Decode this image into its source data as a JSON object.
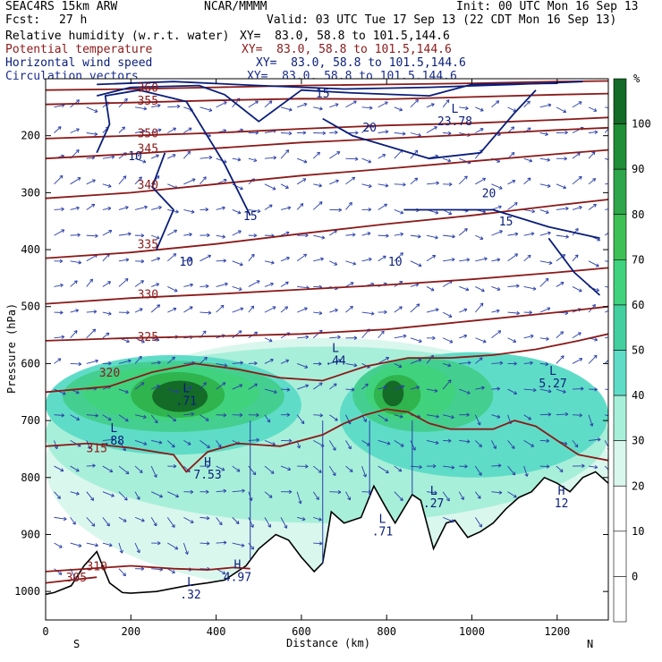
{
  "header": {
    "model": "SEAC4RS 15km ARW",
    "center": "NCAR/MMMM",
    "init": "Init: 00 UTC Mon 16 Sep 13",
    "fcst_label": "Fcst:",
    "fcst_value": "27 h",
    "valid": "Valid: 03 UTC Tue 17 Sep 13 (22 CDT Mon 16 Sep 13)"
  },
  "fields": [
    {
      "name": "Relative humidity (w.r.t. water)",
      "xy": "XY=  83.0, 58.8 to 101.5,144.6",
      "color": "#000000"
    },
    {
      "name": "Potential temperature",
      "xy": "XY=  83.0, 58.8 to 101.5,144.6",
      "color": "#8b1a1a"
    },
    {
      "name": "Horizontal wind speed",
      "xy": "XY=  83.0, 58.8 to 101.5,144.6",
      "color": "#0a1e7a"
    },
    {
      "name": "Circulation vectors",
      "xy": "XY=  83.0, 58.8 to 101.5,144.6",
      "color": "#1a2d8f"
    }
  ],
  "colors": {
    "theta": "#8b1a1a",
    "wind": "#0a1e7a",
    "vector": "#2a3fa8",
    "terrain": "#000000"
  },
  "chart_data": {
    "type": "heatmap",
    "title": "",
    "xlabel": "Distance (km)",
    "ylabel": "Pressure (hPa)",
    "xlim": [
      0,
      1320
    ],
    "ylim": [
      1050,
      100
    ],
    "x_ticks": [
      "0",
      "200",
      "400",
      "600",
      "800",
      "1000",
      "1200"
    ],
    "x_tick_values": [
      0,
      200,
      400,
      600,
      800,
      1000,
      1200
    ],
    "y_ticks": [
      "200",
      "300",
      "400",
      "500",
      "600",
      "700",
      "800",
      "900",
      "1000"
    ],
    "y_tick_values": [
      200,
      300,
      400,
      500,
      600,
      700,
      800,
      900,
      1000
    ],
    "endpoints": {
      "left": "S",
      "right": "N"
    },
    "colorbar": {
      "unit": "%",
      "labels": [
        "100",
        "90",
        "80",
        "70",
        "60",
        "50",
        "40",
        "30",
        "20",
        "10",
        "0"
      ],
      "levels": [
        100,
        90,
        80,
        70,
        60,
        50,
        40,
        30,
        20,
        10,
        0
      ],
      "colors": [
        "#ffffff",
        "#ffffff",
        "#ffffff",
        "#daf7ed",
        "#a8efd9",
        "#5fdcc7",
        "#44cfa0",
        "#40d27c",
        "#3fc054",
        "#2fa64a",
        "#1f8e36",
        "#146a27"
      ]
    },
    "terrain_km": [
      0,
      20,
      60,
      90,
      120,
      150,
      180,
      200,
      260,
      330,
      380,
      420,
      470,
      500,
      540,
      570,
      600,
      630,
      650,
      670,
      700,
      740,
      770,
      800,
      820,
      860,
      880,
      910,
      940,
      960,
      990,
      1020,
      1050,
      1080,
      1110,
      1140,
      1170,
      1200,
      1230,
      1260,
      1290,
      1320
    ],
    "terrain_hpa": [
      1005,
      1002,
      990,
      955,
      930,
      985,
      1002,
      1003,
      1000,
      990,
      985,
      980,
      955,
      925,
      900,
      910,
      940,
      965,
      950,
      860,
      880,
      870,
      815,
      855,
      880,
      830,
      840,
      925,
      880,
      875,
      905,
      895,
      880,
      855,
      835,
      825,
      800,
      810,
      825,
      800,
      790,
      810
    ],
    "rh_regions": [
      {
        "level": 30,
        "center_km": [
          340,
          640
        ],
        "hpa_span": [
          550,
          1000
        ]
      },
      {
        "level": 60,
        "center_km": [
          180,
          640
        ],
        "hpa_span": [
          580,
          720
        ]
      },
      {
        "level": 90,
        "center_km": [
          300,
          650
        ],
        "hpa_span": [
          620,
          690
        ]
      }
    ],
    "theta_contours": [
      {
        "label": "360",
        "km": [
          0,
          200,
          400,
          600,
          800,
          1000,
          1200,
          1320
        ],
        "hpa": [
          120,
          118,
          115,
          112,
          110,
          108,
          105,
          104
        ]
      },
      {
        "label": "355",
        "km": [
          0,
          200,
          400,
          600,
          800,
          1000,
          1200,
          1320
        ],
        "hpa": [
          145,
          142,
          138,
          135,
          136,
          132,
          128,
          126
        ]
      },
      {
        "label": "350",
        "km": [
          0,
          200,
          400,
          600,
          800,
          1000,
          1200,
          1320
        ],
        "hpa": [
          205,
          200,
          195,
          188,
          182,
          178,
          172,
          168
        ]
      },
      {
        "label": "345",
        "km": [
          0,
          200,
          400,
          600,
          800,
          1000,
          1200,
          1320
        ],
        "hpa": [
          240,
          232,
          222,
          212,
          205,
          198,
          190,
          186
        ]
      },
      {
        "label": "340",
        "km": [
          0,
          200,
          400,
          600,
          800,
          1000,
          1200,
          1320
        ],
        "hpa": [
          310,
          300,
          285,
          270,
          258,
          245,
          232,
          225
        ]
      },
      {
        "label": "335",
        "km": [
          0,
          200,
          400,
          600,
          800,
          1000,
          1200,
          1320
        ],
        "hpa": [
          415,
          405,
          390,
          372,
          355,
          340,
          322,
          312
        ]
      },
      {
        "label": "330",
        "km": [
          0,
          200,
          400,
          600,
          800,
          1000,
          1200,
          1320
        ],
        "hpa": [
          495,
          485,
          478,
          470,
          462,
          452,
          440,
          432
        ]
      },
      {
        "label": "325",
        "km": [
          0,
          200,
          400,
          600,
          800,
          1000,
          1200,
          1320
        ],
        "hpa": [
          560,
          555,
          552,
          548,
          540,
          525,
          510,
          500
        ]
      },
      {
        "label": "320",
        "km": [
          0,
          150,
          250,
          350,
          450,
          550,
          650,
          750,
          850,
          950,
          1050,
          1150,
          1250,
          1320
        ],
        "hpa": [
          650,
          640,
          615,
          600,
          610,
          625,
          630,
          605,
          590,
          590,
          585,
          575,
          560,
          548
        ]
      },
      {
        "label": "315",
        "km": [
          0,
          100,
          200,
          300,
          330,
          380,
          450,
          550,
          650,
          700,
          750,
          800,
          850,
          900,
          950,
          1050,
          1100,
          1150,
          1200,
          1250,
          1320
        ],
        "hpa": [
          745,
          740,
          748,
          760,
          790,
          755,
          740,
          745,
          725,
          705,
          690,
          680,
          685,
          705,
          715,
          715,
          700,
          710,
          735,
          760,
          770
        ]
      },
      {
        "label": "310",
        "km": [
          0,
          100,
          200,
          300,
          380,
          440,
          480
        ],
        "hpa": [
          965,
          960,
          955,
          960,
          962,
          958,
          960
        ]
      },
      {
        "label": "305",
        "km": [
          0,
          60,
          120
        ],
        "hpa": [
          985,
          980,
          975
        ]
      }
    ],
    "wind_labels": [
      {
        "label": "15",
        "km": 650,
        "hpa": 125
      },
      {
        "label": "20",
        "km": 760,
        "hpa": 185
      },
      {
        "label": "10",
        "km": 210,
        "hpa": 235
      },
      {
        "label": "15",
        "km": 480,
        "hpa": 340
      },
      {
        "label": "20",
        "km": 1040,
        "hpa": 300
      },
      {
        "label": "15",
        "km": 1080,
        "hpa": 350
      },
      {
        "label": "10",
        "km": 330,
        "hpa": 420
      },
      {
        "label": "10",
        "km": 820,
        "hpa": 420
      }
    ],
    "extrema": [
      {
        "type": "L",
        "value": "23.78",
        "km": 960,
        "hpa": 160
      },
      {
        "type": "L",
        "value": ".44",
        "km": 680,
        "hpa": 580
      },
      {
        "type": "L",
        "value": ".71",
        "km": 330,
        "hpa": 650
      },
      {
        "type": "L",
        "value": ".88",
        "km": 160,
        "hpa": 720
      },
      {
        "type": "H",
        "value": "7.53",
        "km": 380,
        "hpa": 780
      },
      {
        "type": "L",
        "value": "5.27",
        "km": 1190,
        "hpa": 620
      },
      {
        "type": "L",
        "value": ".27",
        "km": 910,
        "hpa": 830
      },
      {
        "type": "L",
        "value": ".71",
        "km": 790,
        "hpa": 880
      },
      {
        "type": "H",
        "value": "4.97",
        "km": 450,
        "hpa": 960
      },
      {
        "type": "L",
        "value": ".32",
        "km": 340,
        "hpa": 990
      },
      {
        "type": "H",
        "value": "12",
        "km": 1210,
        "hpa": 830
      }
    ]
  }
}
